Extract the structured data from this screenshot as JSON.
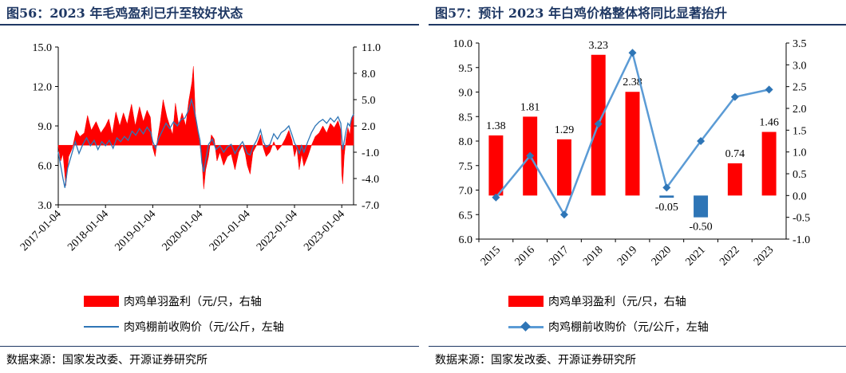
{
  "left": {
    "title": "图56：2023 年毛鸡盈利已升至较好状态",
    "legend": {
      "profit_label": "肉鸡单羽盈利（元/只，右轴",
      "price_label": "肉鸡棚前收购价（元/公斤，左轴"
    },
    "source": "数据来源：国家发改委、开源证券研究所"
  },
  "right": {
    "title": "图57：预计 2023 年白鸡价格整体将同比显著抬升",
    "legend": {
      "profit_label": "肉鸡单羽盈利（元/只，右轴",
      "price_label": "肉鸡棚前收购价（元/公斤，左轴"
    },
    "source": "数据来源：国家发改委、开源证券研究所"
  },
  "chart_data": [
    {
      "type": "area+line",
      "y_left": {
        "min": 3.0,
        "max": 15.0,
        "ticks": [
          "3.0",
          "6.0",
          "9.0",
          "12.0",
          "15.0"
        ]
      },
      "y_right": {
        "min": -7.0,
        "max": 11.0,
        "ticks": [
          "-7.0",
          "-4.0",
          "-1.0",
          "2.0",
          "5.0",
          "8.0",
          "11.0"
        ]
      },
      "x_ticks": [
        "2017-01-04",
        "2018-01-04",
        "2019-01-04",
        "2020-01-04",
        "2021-01-04",
        "2022-01-04",
        "2023-01-04"
      ],
      "x_range": [
        2017.0,
        2023.25
      ],
      "series": [
        {
          "name": "肉鸡单羽盈利（元/只，右轴",
          "axis": "right",
          "color": "#ff0000",
          "kind": "area",
          "points": [
            [
              2017.0,
              -0.3
            ],
            [
              2017.05,
              -2.0
            ],
            [
              2017.1,
              -1.2
            ],
            [
              2017.16,
              -4.8
            ],
            [
              2017.22,
              -1.5
            ],
            [
              2017.3,
              -0.5
            ],
            [
              2017.38,
              1.5
            ],
            [
              2017.46,
              0.8
            ],
            [
              2017.55,
              1.2
            ],
            [
              2017.62,
              3.2
            ],
            [
              2017.7,
              1.5
            ],
            [
              2017.8,
              2.5
            ],
            [
              2017.9,
              1.2
            ],
            [
              2018.0,
              2.0
            ],
            [
              2018.07,
              2.8
            ],
            [
              2018.14,
              1.0
            ],
            [
              2018.22,
              3.6
            ],
            [
              2018.3,
              2.0
            ],
            [
              2018.38,
              3.5
            ],
            [
              2018.46,
              2.2
            ],
            [
              2018.55,
              4.5
            ],
            [
              2018.63,
              2.0
            ],
            [
              2018.72,
              4.2
            ],
            [
              2018.8,
              2.5
            ],
            [
              2018.88,
              3.8
            ],
            [
              2018.95,
              3.0
            ],
            [
              2019.0,
              -0.5
            ],
            [
              2019.05,
              -1.5
            ],
            [
              2019.1,
              0.5
            ],
            [
              2019.16,
              2.5
            ],
            [
              2019.22,
              5.0
            ],
            [
              2019.3,
              3.0
            ],
            [
              2019.36,
              2.0
            ],
            [
              2019.42,
              1.0
            ],
            [
              2019.48,
              4.6
            ],
            [
              2019.55,
              2.0
            ],
            [
              2019.62,
              3.5
            ],
            [
              2019.7,
              2.0
            ],
            [
              2019.76,
              4.8
            ],
            [
              2019.83,
              7.0
            ],
            [
              2019.86,
              8.8
            ],
            [
              2019.9,
              3.5
            ],
            [
              2019.95,
              1.5
            ],
            [
              2020.0,
              -0.2
            ],
            [
              2020.04,
              -2.0
            ],
            [
              2020.08,
              -5.2
            ],
            [
              2020.12,
              -3.0
            ],
            [
              2020.18,
              -1.5
            ],
            [
              2020.24,
              1.0
            ],
            [
              2020.3,
              0.5
            ],
            [
              2020.36,
              -2.0
            ],
            [
              2020.42,
              -1.0
            ],
            [
              2020.5,
              -2.5
            ],
            [
              2020.58,
              -1.5
            ],
            [
              2020.66,
              -1.2
            ],
            [
              2020.74,
              -3.0
            ],
            [
              2020.82,
              -1.0
            ],
            [
              2020.9,
              -0.2
            ],
            [
              2020.96,
              -1.2
            ],
            [
              2021.0,
              -2.5
            ],
            [
              2021.06,
              -3.5
            ],
            [
              2021.12,
              -1.0
            ],
            [
              2021.2,
              -0.2
            ],
            [
              2021.28,
              1.0
            ],
            [
              2021.34,
              -0.5
            ],
            [
              2021.4,
              -1.5
            ],
            [
              2021.48,
              -1.0
            ],
            [
              2021.56,
              0.2
            ],
            [
              2021.64,
              -0.8
            ],
            [
              2021.72,
              -0.3
            ],
            [
              2021.8,
              0.5
            ],
            [
              2021.88,
              1.5
            ],
            [
              2021.95,
              0.3
            ],
            [
              2022.0,
              -1.5
            ],
            [
              2022.05,
              -0.5
            ],
            [
              2022.1,
              -3.0
            ],
            [
              2022.15,
              -1.2
            ],
            [
              2022.2,
              -2.6
            ],
            [
              2022.28,
              -1.5
            ],
            [
              2022.36,
              -0.2
            ],
            [
              2022.44,
              0.8
            ],
            [
              2022.52,
              1.2
            ],
            [
              2022.6,
              2.0
            ],
            [
              2022.68,
              1.2
            ],
            [
              2022.76,
              2.3
            ],
            [
              2022.84,
              1.8
            ],
            [
              2022.92,
              2.6
            ],
            [
              2022.98,
              1.5
            ],
            [
              2023.0,
              -3.5
            ],
            [
              2023.02,
              -4.6
            ],
            [
              2023.05,
              -1.5
            ],
            [
              2023.09,
              0.5
            ],
            [
              2023.13,
              1.8
            ],
            [
              2023.17,
              1.0
            ],
            [
              2023.21,
              3.0
            ],
            [
              2023.25,
              3.2
            ]
          ]
        },
        {
          "name": "肉鸡棚前收购价（元/公斤，左轴",
          "axis": "left",
          "color": "#2e75b6",
          "kind": "line",
          "points": [
            [
              2017.0,
              7.0
            ],
            [
              2017.05,
              6.0
            ],
            [
              2017.1,
              5.0
            ],
            [
              2017.14,
              4.3
            ],
            [
              2017.2,
              5.8
            ],
            [
              2017.28,
              6.8
            ],
            [
              2017.36,
              7.8
            ],
            [
              2017.44,
              6.9
            ],
            [
              2017.52,
              7.6
            ],
            [
              2017.6,
              8.1
            ],
            [
              2017.68,
              7.5
            ],
            [
              2017.76,
              7.9
            ],
            [
              2017.84,
              7.2
            ],
            [
              2017.92,
              7.8
            ],
            [
              2018.0,
              7.5
            ],
            [
              2018.08,
              7.9
            ],
            [
              2018.16,
              7.3
            ],
            [
              2018.24,
              8.1
            ],
            [
              2018.32,
              7.8
            ],
            [
              2018.4,
              8.2
            ],
            [
              2018.48,
              7.9
            ],
            [
              2018.56,
              8.6
            ],
            [
              2018.64,
              8.3
            ],
            [
              2018.72,
              8.8
            ],
            [
              2018.8,
              8.4
            ],
            [
              2018.88,
              8.9
            ],
            [
              2018.96,
              8.5
            ],
            [
              2019.0,
              7.8
            ],
            [
              2019.06,
              7.3
            ],
            [
              2019.12,
              8.0
            ],
            [
              2019.2,
              8.6
            ],
            [
              2019.28,
              9.2
            ],
            [
              2019.36,
              8.8
            ],
            [
              2019.44,
              9.3
            ],
            [
              2019.52,
              9.0
            ],
            [
              2019.6,
              9.5
            ],
            [
              2019.68,
              9.6
            ],
            [
              2019.76,
              10.2
            ],
            [
              2019.82,
              11.0
            ],
            [
              2019.86,
              10.5
            ],
            [
              2019.92,
              9.4
            ],
            [
              2019.96,
              8.6
            ],
            [
              2020.0,
              7.9
            ],
            [
              2020.04,
              6.2
            ],
            [
              2020.08,
              5.5
            ],
            [
              2020.12,
              6.4
            ],
            [
              2020.18,
              7.6
            ],
            [
              2020.26,
              8.0
            ],
            [
              2020.34,
              7.2
            ],
            [
              2020.42,
              7.5
            ],
            [
              2020.5,
              7.0
            ],
            [
              2020.58,
              7.4
            ],
            [
              2020.66,
              7.6
            ],
            [
              2020.74,
              6.9
            ],
            [
              2020.82,
              7.4
            ],
            [
              2020.9,
              7.8
            ],
            [
              2020.96,
              7.3
            ],
            [
              2021.0,
              6.9
            ],
            [
              2021.06,
              6.8
            ],
            [
              2021.12,
              7.4
            ],
            [
              2021.2,
              7.9
            ],
            [
              2021.28,
              8.7
            ],
            [
              2021.34,
              7.8
            ],
            [
              2021.4,
              7.4
            ],
            [
              2021.48,
              7.6
            ],
            [
              2021.56,
              8.4
            ],
            [
              2021.64,
              8.0
            ],
            [
              2021.72,
              8.5
            ],
            [
              2021.8,
              8.7
            ],
            [
              2021.88,
              9.0
            ],
            [
              2021.95,
              8.3
            ],
            [
              2022.0,
              7.7
            ],
            [
              2022.05,
              7.4
            ],
            [
              2022.1,
              6.9
            ],
            [
              2022.15,
              7.5
            ],
            [
              2022.2,
              7.0
            ],
            [
              2022.28,
              7.8
            ],
            [
              2022.36,
              8.5
            ],
            [
              2022.44,
              9.0
            ],
            [
              2022.52,
              9.3
            ],
            [
              2022.6,
              9.5
            ],
            [
              2022.68,
              9.2
            ],
            [
              2022.76,
              9.6
            ],
            [
              2022.84,
              9.3
            ],
            [
              2022.92,
              9.7
            ],
            [
              2022.98,
              9.2
            ],
            [
              2023.0,
              8.2
            ],
            [
              2023.02,
              7.2
            ],
            [
              2023.05,
              7.8
            ],
            [
              2023.09,
              8.6
            ],
            [
              2023.13,
              9.2
            ],
            [
              2023.17,
              9.0
            ],
            [
              2023.21,
              9.6
            ],
            [
              2023.25,
              9.9
            ]
          ]
        }
      ]
    },
    {
      "type": "bar+line",
      "categories": [
        "2015",
        "2016",
        "2017",
        "2018",
        "2019",
        "2020",
        "2021",
        "2022",
        "2023"
      ],
      "y_left": {
        "min": 6.0,
        "max": 10.0,
        "ticks": [
          "6.0",
          "6.5",
          "7.0",
          "7.5",
          "8.0",
          "8.5",
          "9.0",
          "9.5",
          "10.0"
        ]
      },
      "y_right": {
        "min": -1.0,
        "max": 3.5,
        "ticks": [
          "-1.0",
          "-0.5",
          "0.0",
          "0.5",
          "1.0",
          "1.5",
          "2.0",
          "2.5",
          "3.0",
          "3.5"
        ]
      },
      "series": [
        {
          "name": "肉鸡单羽盈利（元/只，右轴",
          "axis": "right",
          "kind": "bar",
          "values": [
            1.38,
            1.81,
            1.29,
            3.23,
            2.38,
            -0.05,
            -0.5,
            0.74,
            1.46
          ],
          "labels": [
            "1.38",
            "1.81",
            "1.29",
            "3.23",
            "2.38",
            "-0.05",
            "-0.50",
            "0.74",
            "1.46"
          ],
          "colors": [
            "#ff0000",
            "#ff0000",
            "#ff0000",
            "#ff0000",
            "#ff0000",
            "#2e75b6",
            "#2e75b6",
            "#ff0000",
            "#ff0000"
          ]
        },
        {
          "name": "肉鸡棚前收购价（元/公斤，左轴",
          "axis": "left",
          "kind": "line",
          "color": "#5b9bd5",
          "marker_color": "#2e75b6",
          "values": [
            6.85,
            7.7,
            6.5,
            8.35,
            9.8,
            7.05,
            8.0,
            8.9,
            9.05
          ]
        }
      ]
    }
  ]
}
